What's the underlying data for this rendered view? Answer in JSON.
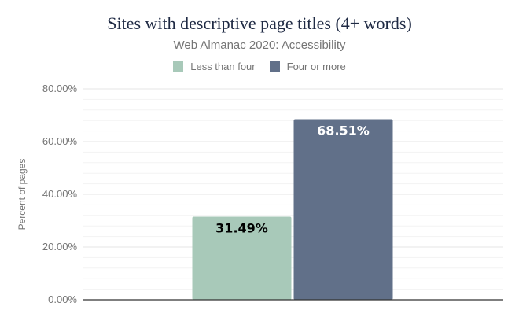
{
  "chart_data": {
    "type": "bar",
    "title": "Sites with descriptive page titles (4+ words)",
    "subtitle": "Web Almanac 2020: Accessibility",
    "xlabel": "",
    "ylabel": "Percent of pages",
    "ylim": [
      0,
      80
    ],
    "yticks": [
      "0.00%",
      "20.00%",
      "40.00%",
      "60.00%",
      "80.00%"
    ],
    "grid": true,
    "legend_position": "top",
    "series": [
      {
        "name": "Less than four",
        "value": 31.49,
        "label": "31.49%",
        "color": "#a8c9b9",
        "label_color": "#000000"
      },
      {
        "name": "Four or more",
        "value": 68.51,
        "label": "68.51%",
        "color": "#617089",
        "label_color": "#ffffff"
      }
    ]
  }
}
